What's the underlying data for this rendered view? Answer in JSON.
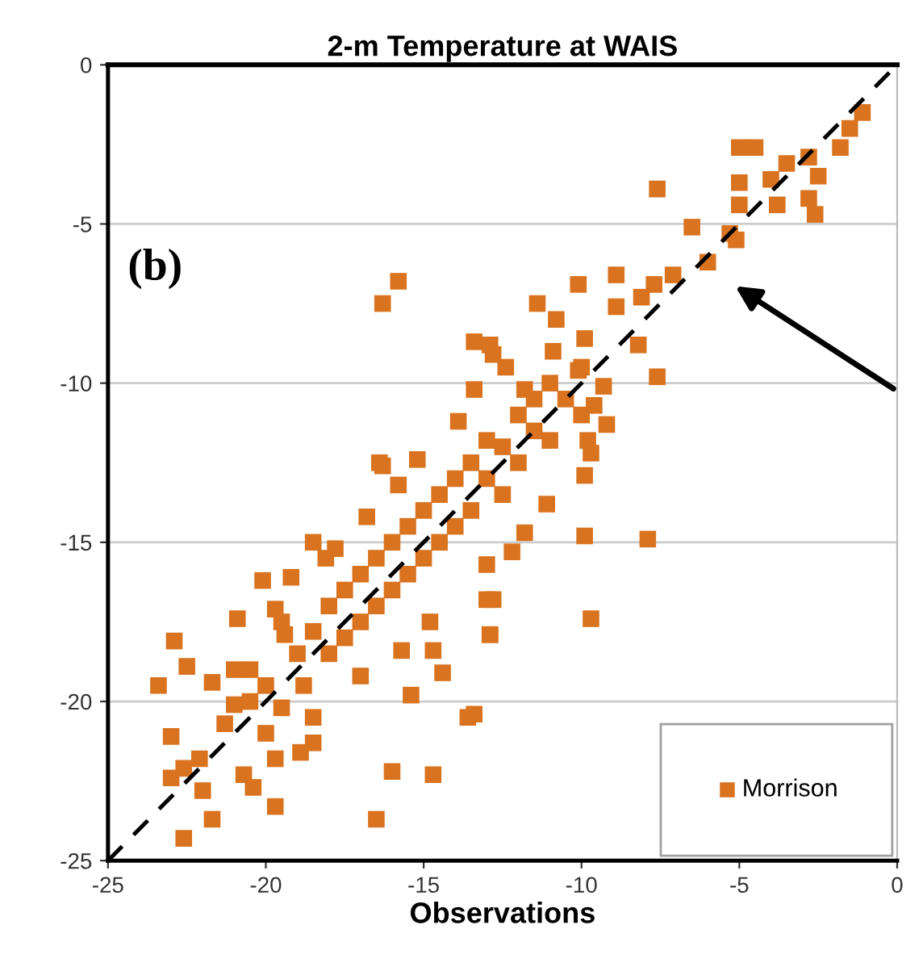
{
  "chart_data": {
    "type": "scatter",
    "title": "2-m Temperature at WAIS",
    "xlabel": "Observations",
    "annotations": [
      "(b)"
    ],
    "xlim": [
      -25,
      0
    ],
    "ylim": [
      -25,
      0
    ],
    "xticks": [
      -25,
      -20,
      -15,
      -10,
      -5,
      0
    ],
    "yticks": [
      -25,
      -20,
      -15,
      -10,
      -5,
      0
    ],
    "grid": "y",
    "legend": "bottom right",
    "marker": "square",
    "series": [
      {
        "name": "Morrison",
        "color": "#d9731f",
        "x": [
          -22.9,
          -22.5,
          -23.4,
          -21.7,
          -23.0,
          -23.0,
          -22.6,
          -22.1,
          -22.0,
          -22.6,
          -21.7,
          -20.7,
          -20.4,
          -19.7,
          -19.7,
          -18.9,
          -18.5,
          -16.0,
          -14.7,
          -16.5,
          -13.6,
          -15.4,
          -12.9,
          -20.9,
          -20.1,
          -19.7,
          -19.2,
          -20.5,
          -21.0,
          -21.3,
          -19.4,
          -18.5,
          -18.1,
          -16.3,
          -15.2,
          -15.7,
          -14.7,
          -14.4,
          -14.8,
          -13.0,
          -20.5,
          -20.0,
          -19.5,
          -19.0,
          -18.8,
          -18.5,
          -18.0,
          -18.0,
          -17.5,
          -17.5,
          -17.0,
          -17.0,
          -16.5,
          -16.5,
          -16.0,
          -16.0,
          -15.5,
          -15.5,
          -15.0,
          -15.0,
          -14.5,
          -14.5,
          -14.0,
          -14.0,
          -13.5,
          -13.5,
          -13.0,
          -13.0,
          -12.5,
          -12.5,
          -12.0,
          -12.0,
          -11.5,
          -11.5,
          -11.0,
          -11.0,
          -10.5,
          -10.0,
          -10.0,
          -17.8,
          -16.8,
          -15.8,
          -19.5,
          -21.0,
          -20.0,
          -18.5,
          -17.0,
          -7.6,
          -5.0,
          -4.5,
          -5.0,
          -5.0,
          -6.5,
          -5.3,
          -4.0,
          -3.5,
          -2.8,
          -2.5,
          -2.8,
          -2.6,
          -3.8,
          -1.8,
          -1.5,
          -1.1,
          -6.0,
          -5.1,
          -7.1,
          -7.7,
          -8.9,
          -10.1,
          -11.4,
          -10.8,
          -8.9,
          -8.1,
          -8.2,
          -7.6,
          -9.3,
          -9.6,
          -9.2,
          -9.9,
          -12.9,
          -12.4,
          -11.8,
          -10.9,
          -10.1,
          -9.8,
          -15.8,
          -16.3,
          -13.4,
          -12.8,
          -13.4,
          -13.9,
          -16.4,
          -9.9,
          -11.1,
          -9.9,
          -7.9,
          -9.7,
          -12.8,
          -12.9,
          -12.2,
          -11.8,
          -13.0,
          -13.4,
          -9.7
        ],
        "values": [
          -18.1,
          -18.9,
          -19.5,
          -19.4,
          -21.1,
          -22.4,
          -22.1,
          -21.8,
          -22.8,
          -24.3,
          -23.7,
          -22.3,
          -22.7,
          -23.3,
          -21.8,
          -21.6,
          -21.3,
          -22.2,
          -22.3,
          -23.7,
          -20.5,
          -19.8,
          -17.9,
          -17.4,
          -16.2,
          -17.1,
          -16.1,
          -19.0,
          -20.1,
          -20.7,
          -17.9,
          -15.0,
          -15.5,
          -12.6,
          -12.4,
          -18.4,
          -18.4,
          -19.1,
          -17.5,
          -16.8,
          -20.0,
          -19.5,
          -20.2,
          -18.5,
          -19.5,
          -17.8,
          -18.5,
          -17.0,
          -16.5,
          -18.0,
          -17.5,
          -16.0,
          -15.5,
          -17.0,
          -16.5,
          -15.0,
          -14.5,
          -16.0,
          -15.5,
          -14.0,
          -13.5,
          -15.0,
          -14.5,
          -13.0,
          -12.5,
          -14.0,
          -13.0,
          -11.8,
          -12.0,
          -13.5,
          -11.0,
          -12.5,
          -11.5,
          -10.5,
          -10.0,
          -11.8,
          -10.5,
          -9.5,
          -11.0,
          -15.2,
          -14.2,
          -13.2,
          -17.5,
          -19.0,
          -21.0,
          -20.5,
          -19.2,
          -3.9,
          -2.6,
          -2.6,
          -3.7,
          -4.4,
          -5.1,
          -5.3,
          -3.6,
          -3.1,
          -2.9,
          -3.5,
          -4.2,
          -4.7,
          -4.4,
          -2.6,
          -2.0,
          -1.5,
          -6.2,
          -5.5,
          -6.6,
          -6.9,
          -6.6,
          -6.9,
          -7.5,
          -8.0,
          -7.6,
          -7.3,
          -8.8,
          -9.8,
          -10.1,
          -10.7,
          -11.3,
          -8.6,
          -8.8,
          -9.5,
          -10.2,
          -9.0,
          -9.6,
          -11.8,
          -6.8,
          -7.5,
          -8.7,
          -9.1,
          -10.2,
          -11.2,
          -12.5,
          -12.9,
          -13.8,
          -14.8,
          -14.9,
          -17.4,
          -16.8,
          -17.9,
          -15.3,
          -14.7,
          -15.7,
          -20.4,
          -12.2
        ]
      },
      {
        "type": "line",
        "color": "#000000",
        "line_style": "dashed",
        "marker": "none",
        "x": [
          -25,
          0
        ],
        "values": [
          -25,
          0
        ]
      }
    ]
  }
}
